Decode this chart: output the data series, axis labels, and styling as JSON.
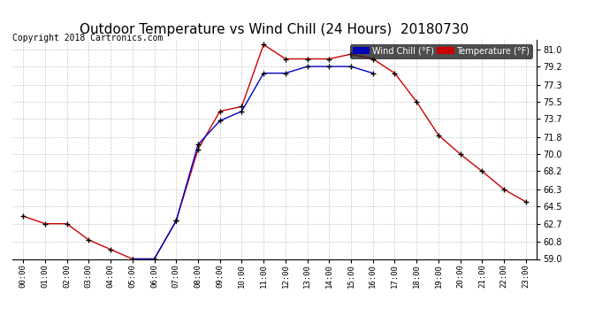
{
  "title": "Outdoor Temperature vs Wind Chill (24 Hours)  20180730",
  "copyright": "Copyright 2018 Cartronics.com",
  "temp_label": "Temperature (°F)",
  "wind_label": "Wind Chill (°F)",
  "hours": [
    0,
    1,
    2,
    3,
    4,
    5,
    6,
    7,
    8,
    9,
    10,
    11,
    12,
    13,
    14,
    15,
    16,
    17,
    18,
    19,
    20,
    21,
    22,
    23
  ],
  "temperature": [
    63.5,
    62.7,
    62.7,
    61.0,
    60.0,
    59.0,
    59.0,
    63.0,
    70.5,
    74.5,
    75.0,
    81.5,
    80.0,
    80.0,
    80.0,
    80.5,
    80.0,
    78.5,
    75.5,
    72.0,
    70.0,
    68.2,
    66.3,
    65.0
  ],
  "wind_chill": [
    null,
    null,
    null,
    null,
    null,
    59.0,
    59.0,
    63.0,
    71.0,
    73.5,
    74.5,
    78.5,
    78.5,
    79.2,
    79.2,
    79.2,
    78.5,
    null,
    null,
    null,
    null,
    null,
    null,
    null
  ],
  "temp_color": "#cc0000",
  "wind_color": "#0000cc",
  "marker": "+",
  "marker_color": "#000000",
  "background_color": "#ffffff",
  "grid_color": "#bbbbbb",
  "ylim": [
    59.0,
    82.0
  ],
  "yticks": [
    59.0,
    60.8,
    62.7,
    64.5,
    66.3,
    68.2,
    70.0,
    71.8,
    73.7,
    75.5,
    77.3,
    79.2,
    81.0
  ],
  "title_fontsize": 11,
  "copyright_fontsize": 7,
  "legend_wind_bg": "#0000bb",
  "legend_temp_bg": "#cc0000",
  "legend_text_color": "#ffffff",
  "legend_frame_bg": "#222222"
}
